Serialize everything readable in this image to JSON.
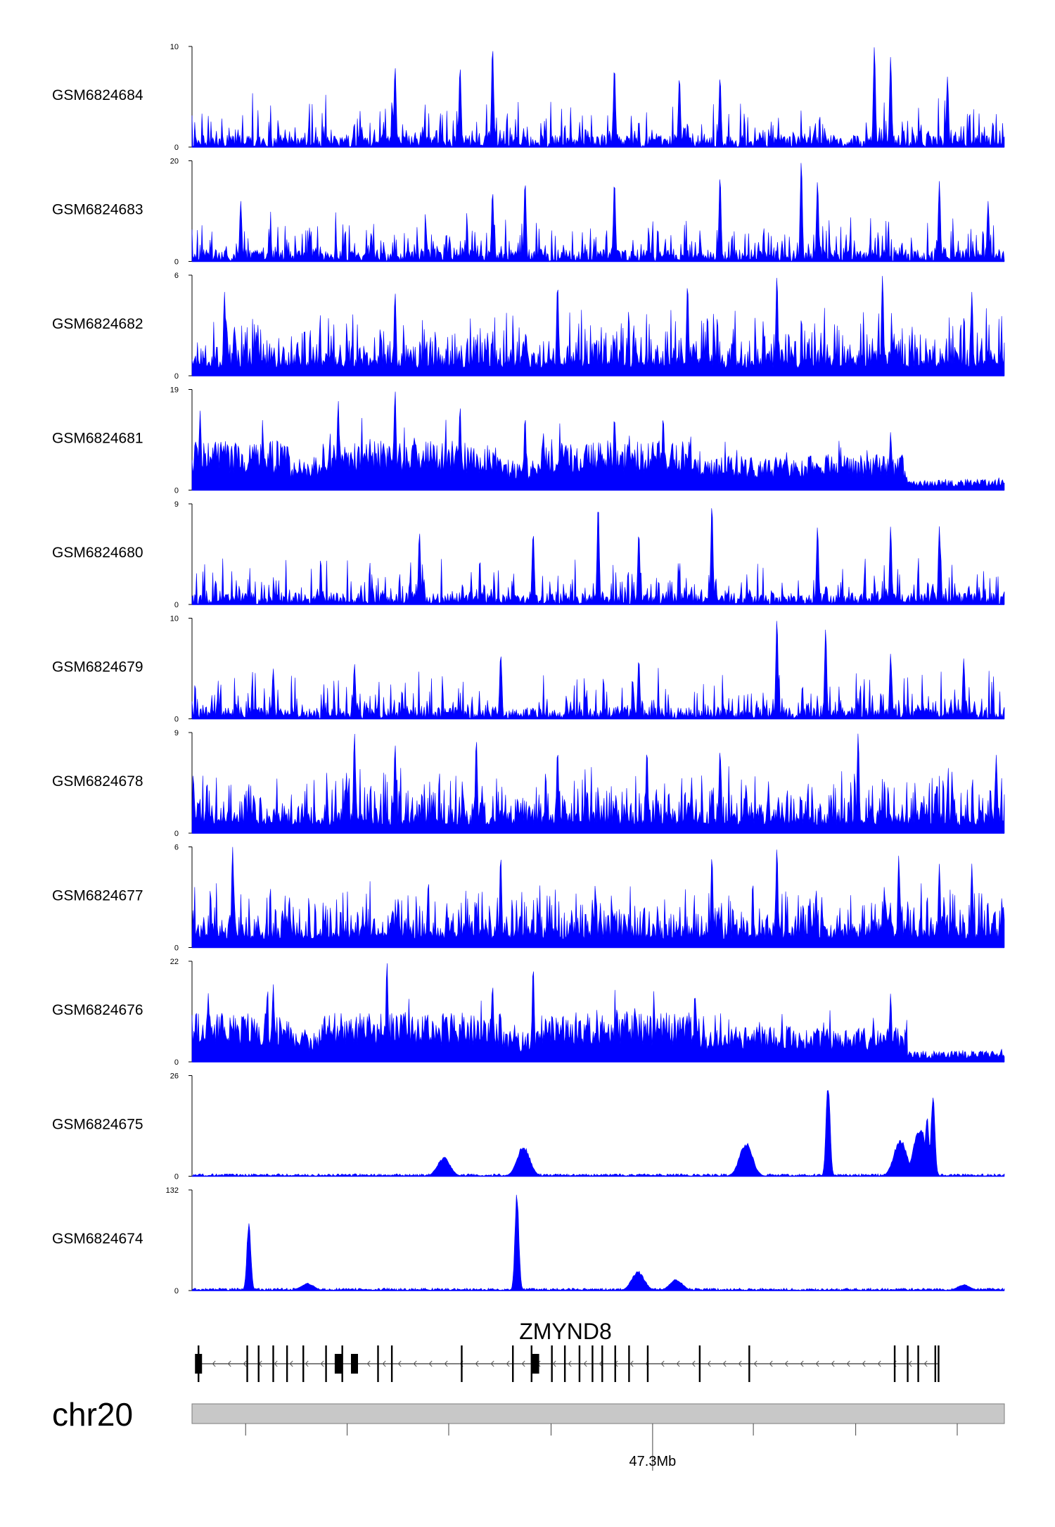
{
  "chart_data": {
    "type": "area",
    "track_color": "#0000ff",
    "genomic_axis": {
      "chromosome": "chr20",
      "position_label": "47.3Mb"
    },
    "gene": {
      "name": "ZMYND8",
      "strand": "-"
    },
    "tracks": [
      {
        "name": "GSM6824684",
        "ymin": 0,
        "ymax": 10,
        "ymin_label": "0",
        "ymax_label": "10",
        "profile": "sparse_spiky",
        "peaks": [
          [
            0.37,
            10
          ],
          [
            0.84,
            10
          ],
          [
            0.86,
            9
          ],
          [
            0.52,
            8
          ],
          [
            0.25,
            8
          ],
          [
            0.33,
            8
          ],
          [
            0.93,
            7
          ],
          [
            0.65,
            7
          ],
          [
            0.6,
            7
          ]
        ]
      },
      {
        "name": "GSM6824683",
        "ymin": 0,
        "ymax": 20,
        "ymin_label": "0",
        "ymax_label": "20",
        "profile": "sparse_spiky",
        "peaks": [
          [
            0.75,
            20
          ],
          [
            0.65,
            17
          ],
          [
            0.77,
            16
          ],
          [
            0.92,
            16
          ],
          [
            0.52,
            16
          ],
          [
            0.41,
            16
          ],
          [
            0.37,
            14
          ],
          [
            0.06,
            12
          ],
          [
            0.98,
            12
          ]
        ]
      },
      {
        "name": "GSM6824682",
        "ymin": 0,
        "ymax": 6,
        "ymin_label": "0",
        "ymax_label": "6",
        "profile": "dense_noise",
        "peaks": [
          [
            0.72,
            6
          ],
          [
            0.85,
            6
          ],
          [
            0.61,
            5.5
          ],
          [
            0.45,
            5.5
          ],
          [
            0.25,
            5
          ],
          [
            0.04,
            5
          ],
          [
            0.96,
            5
          ]
        ]
      },
      {
        "name": "GSM6824681",
        "ymin": 0,
        "ymax": 19,
        "ymin_label": "0",
        "ymax_label": "19",
        "profile": "broad_domain",
        "peaks": [
          [
            0.25,
            19
          ],
          [
            0.18,
            17
          ],
          [
            0.01,
            15
          ],
          [
            0.33,
            16
          ],
          [
            0.41,
            14
          ],
          [
            0.52,
            14
          ],
          [
            0.58,
            14
          ],
          [
            0.86,
            11
          ]
        ]
      },
      {
        "name": "GSM6824680",
        "ymin": 0,
        "ymax": 9,
        "ymin_label": "0",
        "ymax_label": "9",
        "profile": "sparse_spiky",
        "peaks": [
          [
            0.5,
            9
          ],
          [
            0.64,
            9
          ],
          [
            0.28,
            6.5
          ],
          [
            0.42,
            6.5
          ],
          [
            0.55,
            6.5
          ],
          [
            0.77,
            7
          ],
          [
            0.86,
            7
          ],
          [
            0.92,
            7
          ]
        ]
      },
      {
        "name": "GSM6824679",
        "ymin": 0,
        "ymax": 10,
        "ymin_label": "0",
        "ymax_label": "10",
        "profile": "sparse_spiky",
        "peaks": [
          [
            0.72,
            10
          ],
          [
            0.78,
            9
          ],
          [
            0.38,
            6.5
          ],
          [
            0.55,
            6
          ],
          [
            0.86,
            6.5
          ],
          [
            0.95,
            6
          ],
          [
            0.1,
            5
          ],
          [
            0.2,
            5.5
          ]
        ]
      },
      {
        "name": "GSM6824678",
        "ymin": 0,
        "ymax": 9,
        "ymin_label": "0",
        "ymax_label": "9",
        "profile": "dense_noise",
        "peaks": [
          [
            0.82,
            9
          ],
          [
            0.2,
            9
          ],
          [
            0.35,
            8.5
          ],
          [
            0.25,
            8
          ],
          [
            0.45,
            7.5
          ],
          [
            0.56,
            7.5
          ],
          [
            0.65,
            7.5
          ],
          [
            0.99,
            7
          ]
        ]
      },
      {
        "name": "GSM6824677",
        "ymin": 0,
        "ymax": 6,
        "ymin_label": "0",
        "ymax_label": "6",
        "profile": "dense_noise",
        "peaks": [
          [
            0.05,
            6
          ],
          [
            0.38,
            5.5
          ],
          [
            0.64,
            5.5
          ],
          [
            0.72,
            6
          ],
          [
            0.87,
            5.5
          ],
          [
            0.92,
            5
          ],
          [
            0.96,
            5
          ]
        ]
      },
      {
        "name": "GSM6824676",
        "ymin": 0,
        "ymax": 22,
        "ymin_label": "0",
        "ymax_label": "22",
        "profile": "broad_domain",
        "peaks": [
          [
            0.24,
            22
          ],
          [
            0.42,
            21
          ],
          [
            0.1,
            17
          ],
          [
            0.37,
            17
          ],
          [
            0.02,
            15
          ],
          [
            0.86,
            15
          ],
          [
            0.62,
            12
          ]
        ]
      },
      {
        "name": "GSM6824675",
        "ymin": 0,
        "ymax": 26,
        "ymin_label": "0",
        "ymax_label": "26",
        "profile": "low_peaks",
        "peaks": [
          [
            0.783,
            26
          ],
          [
            0.912,
            22
          ],
          [
            0.905,
            16
          ],
          [
            0.896,
            13
          ],
          [
            0.872,
            10
          ],
          [
            0.682,
            9
          ],
          [
            0.408,
            8
          ],
          [
            0.31,
            5
          ]
        ]
      },
      {
        "name": "GSM6824674",
        "ymin": 0,
        "ymax": 132,
        "ymin_label": "0",
        "ymax_label": "132",
        "profile": "low_peaks",
        "peaks": [
          [
            0.4,
            132
          ],
          [
            0.07,
            93
          ],
          [
            0.549,
            26
          ],
          [
            0.596,
            15
          ],
          [
            0.142,
            10
          ],
          [
            0.95,
            8
          ]
        ]
      }
    ],
    "gene_model": {
      "exon_positions": [
        0.008,
        0.068,
        0.082,
        0.1,
        0.117,
        0.137,
        0.165,
        0.185,
        0.229,
        0.246,
        0.332,
        0.395,
        0.418,
        0.443,
        0.459,
        0.477,
        0.493,
        0.505,
        0.521,
        0.538,
        0.561,
        0.625,
        0.686,
        0.865,
        0.881,
        0.894,
        0.915,
        0.919
      ],
      "thick_exon_positions": [
        0.008,
        0.18,
        0.2,
        0.423
      ],
      "tss": 0.919
    }
  }
}
